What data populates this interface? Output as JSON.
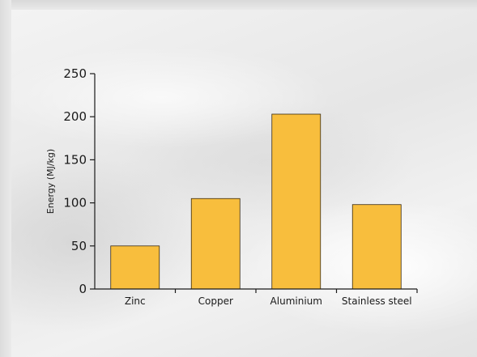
{
  "chart_data": {
    "type": "bar",
    "categories": [
      "Zinc",
      "Copper",
      "Aluminium",
      "Stainless steel"
    ],
    "values": [
      50,
      105,
      203,
      98
    ],
    "title": "",
    "xlabel": "",
    "ylabel": "Energy (MJ/kg)",
    "ylim": [
      0,
      250
    ],
    "yticks": [
      "0",
      "50",
      "100",
      "150",
      "200",
      "250"
    ],
    "grid": false,
    "bar_color": "#F8BE3D"
  }
}
